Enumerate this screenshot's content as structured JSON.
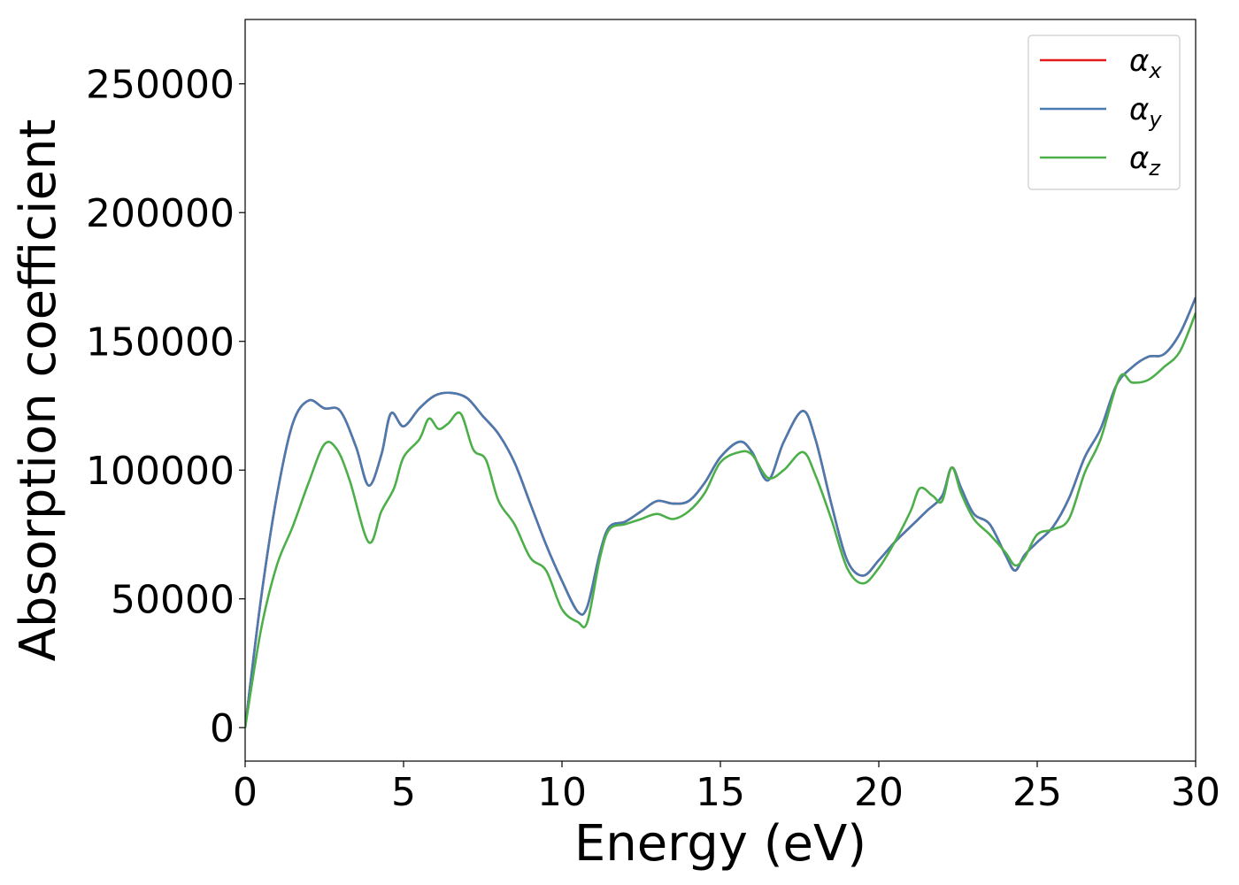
{
  "chart_data": {
    "type": "line",
    "title": "",
    "xlabel": "Energy (eV)",
    "ylabel": "Absorption coefficient",
    "xlim": [
      0,
      30
    ],
    "ylim": [
      -13000,
      275000
    ],
    "xticks": [
      0,
      5,
      10,
      15,
      20,
      25,
      30
    ],
    "xtick_labels": [
      "0",
      "5",
      "10",
      "15",
      "20",
      "25",
      "30"
    ],
    "yticks": [
      0,
      50000,
      100000,
      150000,
      200000,
      250000
    ],
    "ytick_labels": [
      "0",
      "50000",
      "100000",
      "150000",
      "200000",
      "250000"
    ],
    "grid": false,
    "legend_position": "top-right",
    "series": [
      {
        "name": "αx",
        "legend_symbol": "α",
        "legend_subscript": "x",
        "color": "#e41a1c",
        "x": [
          0,
          0.5,
          1.0,
          1.5,
          2.0,
          2.5,
          3.0,
          3.5,
          3.9,
          4.3,
          4.6,
          5.0,
          5.5,
          6.0,
          6.5,
          7.0,
          7.5,
          8.0,
          8.5,
          9.0,
          9.5,
          10.0,
          10.5,
          10.8,
          11.2,
          11.5,
          12.0,
          12.5,
          13.0,
          13.5,
          14.0,
          14.5,
          15.0,
          15.6,
          16.0,
          16.5,
          17.0,
          17.6,
          18.0,
          18.5,
          19.0,
          19.5,
          20.0,
          20.5,
          21.0,
          21.5,
          22.0,
          22.3,
          22.6,
          23.0,
          23.5,
          24.0,
          24.3,
          24.6,
          25.0,
          25.5,
          26.0,
          26.5,
          27.0,
          27.5,
          28.0,
          28.5,
          29.0,
          29.5,
          30.0
        ],
        "values": [
          0,
          50000,
          90000,
          118000,
          127000,
          124000,
          123000,
          109000,
          94000,
          106000,
          122000,
          117000,
          124000,
          129000,
          130000,
          128000,
          121000,
          114000,
          103000,
          87000,
          71000,
          57000,
          45000,
          47000,
          68000,
          78000,
          80000,
          84000,
          88000,
          87000,
          88000,
          95000,
          105000,
          111000,
          107000,
          96000,
          111000,
          123000,
          112000,
          87000,
          65000,
          59000,
          65000,
          72000,
          78000,
          84000,
          90000,
          101000,
          93000,
          83000,
          79000,
          67000,
          61000,
          67000,
          72000,
          78000,
          89000,
          105000,
          116000,
          133000,
          140000,
          144000,
          145000,
          153000,
          167000
        ]
      },
      {
        "name": "αy",
        "legend_symbol": "α",
        "legend_subscript": "y",
        "color": "#4a7bb0",
        "x": [
          0,
          0.5,
          1.0,
          1.5,
          2.0,
          2.5,
          3.0,
          3.5,
          3.9,
          4.3,
          4.6,
          5.0,
          5.5,
          6.0,
          6.5,
          7.0,
          7.5,
          8.0,
          8.5,
          9.0,
          9.5,
          10.0,
          10.5,
          10.8,
          11.2,
          11.5,
          12.0,
          12.5,
          13.0,
          13.5,
          14.0,
          14.5,
          15.0,
          15.6,
          16.0,
          16.5,
          17.0,
          17.6,
          18.0,
          18.5,
          19.0,
          19.5,
          20.0,
          20.5,
          21.0,
          21.5,
          22.0,
          22.3,
          22.6,
          23.0,
          23.5,
          24.0,
          24.3,
          24.6,
          25.0,
          25.5,
          26.0,
          26.5,
          27.0,
          27.5,
          28.0,
          28.5,
          29.0,
          29.5,
          30.0
        ],
        "values": [
          0,
          50000,
          90000,
          118000,
          127000,
          124000,
          123000,
          109000,
          94000,
          106000,
          122000,
          117000,
          124000,
          129000,
          130000,
          128000,
          121000,
          114000,
          103000,
          87000,
          71000,
          57000,
          45000,
          47000,
          68000,
          78000,
          80000,
          84000,
          88000,
          87000,
          88000,
          95000,
          105000,
          111000,
          107000,
          96000,
          111000,
          123000,
          112000,
          87000,
          65000,
          59000,
          65000,
          72000,
          78000,
          84000,
          90000,
          101000,
          93000,
          83000,
          79000,
          67000,
          61000,
          67000,
          72000,
          78000,
          89000,
          105000,
          116000,
          133000,
          140000,
          144000,
          145000,
          153000,
          167000
        ]
      },
      {
        "name": "αz",
        "legend_symbol": "α",
        "legend_subscript": "z",
        "color": "#4daf4a",
        "x": [
          0,
          0.5,
          1.0,
          1.5,
          2.0,
          2.5,
          2.9,
          3.3,
          3.9,
          4.3,
          4.7,
          5.0,
          5.5,
          5.8,
          6.1,
          6.4,
          6.8,
          7.2,
          7.6,
          8.0,
          8.5,
          9.0,
          9.5,
          10.0,
          10.5,
          10.8,
          11.2,
          11.5,
          12.0,
          12.5,
          13.0,
          13.5,
          14.0,
          14.5,
          15.0,
          15.6,
          16.0,
          16.5,
          17.0,
          17.6,
          18.0,
          18.5,
          19.0,
          19.5,
          20.0,
          20.5,
          21.0,
          21.3,
          21.7,
          22.0,
          22.3,
          22.6,
          23.0,
          23.5,
          24.0,
          24.3,
          24.6,
          25.0,
          25.5,
          26.0,
          26.5,
          27.0,
          27.6,
          28.0,
          28.5,
          29.0,
          29.5,
          30.0
        ],
        "values": [
          0,
          38000,
          63000,
          78000,
          95000,
          110000,
          108000,
          96000,
          72000,
          84000,
          93000,
          105000,
          112000,
          120000,
          116000,
          118000,
          122000,
          108000,
          104000,
          88000,
          79000,
          66000,
          61000,
          46000,
          41000,
          41000,
          66000,
          77000,
          79000,
          81000,
          83000,
          81000,
          84000,
          91000,
          103000,
          107000,
          106000,
          97000,
          100000,
          107000,
          98000,
          81000,
          62000,
          56000,
          62000,
          72000,
          84000,
          93000,
          90000,
          88000,
          101000,
          91000,
          81000,
          75000,
          68000,
          63000,
          66000,
          75000,
          77000,
          81000,
          99000,
          112000,
          136000,
          134000,
          135000,
          140000,
          146000,
          161000
        ]
      }
    ]
  }
}
